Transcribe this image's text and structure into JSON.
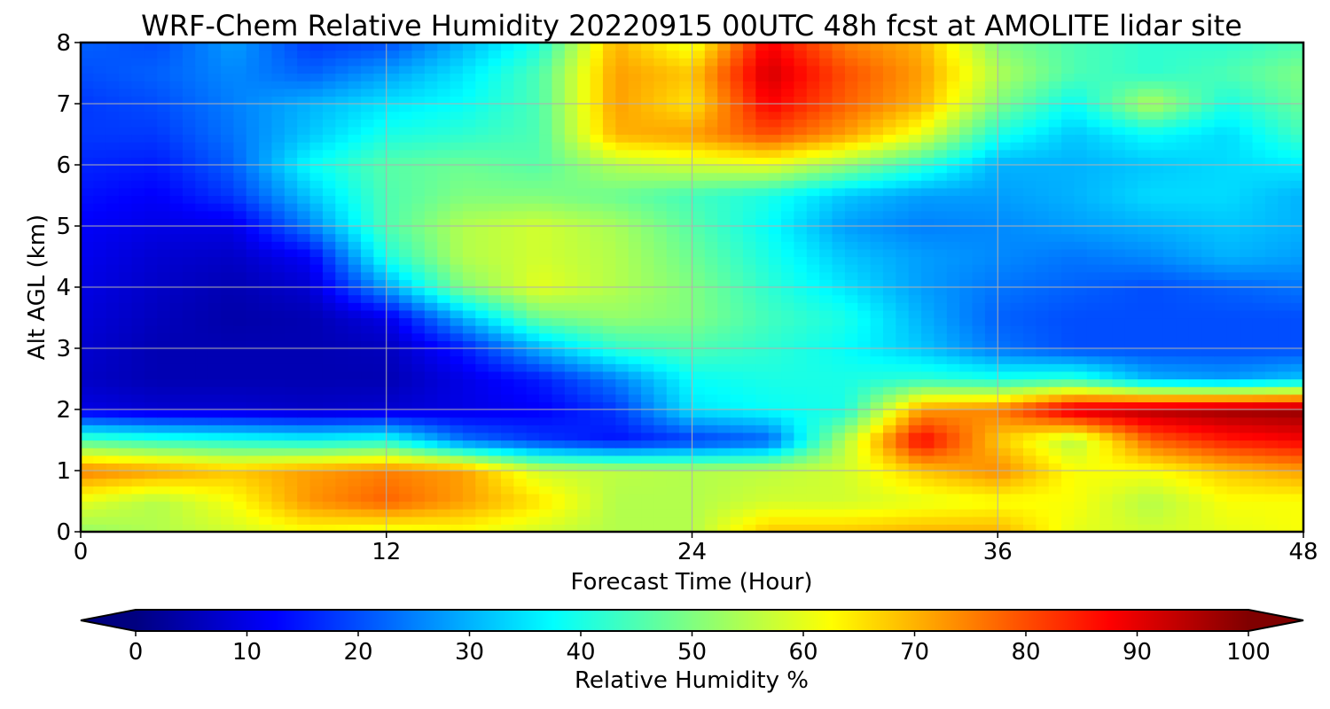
{
  "chart_data": {
    "type": "heatmap",
    "title": "WRF-Chem Relative Humidity 20220915 00UTC 48h fcst at AMOLITE lidar site",
    "xlabel": "Forecast Time (Hour)",
    "ylabel": "Alt AGL (km)",
    "xlim": [
      0,
      48
    ],
    "ylim": [
      0,
      8
    ],
    "x_ticks": [
      "0",
      "12",
      "24",
      "36",
      "48"
    ],
    "y_ticks": [
      "0",
      "1",
      "2",
      "3",
      "4",
      "5",
      "6",
      "7",
      "8"
    ],
    "grid": true,
    "colorbar": {
      "label": "Relative Humidity %",
      "range": [
        0,
        100
      ],
      "ticks": [
        "0",
        "10",
        "20",
        "30",
        "40",
        "50",
        "60",
        "70",
        "80",
        "90",
        "100"
      ],
      "colormap": "jet",
      "extend": "both"
    },
    "x": [
      0,
      3,
      6,
      9,
      12,
      15,
      18,
      21,
      24,
      27,
      30,
      33,
      36,
      39,
      42,
      45,
      48
    ],
    "y": [
      0,
      0.5,
      1,
      1.5,
      2,
      2.5,
      3,
      3.5,
      4,
      4.5,
      5,
      5.5,
      6,
      6.5,
      7,
      7.5,
      8
    ],
    "z": [
      [
        52,
        55,
        58,
        62,
        60,
        62,
        58,
        55,
        55,
        68,
        68,
        70,
        70,
        60,
        58,
        60,
        62
      ],
      [
        60,
        55,
        62,
        73,
        78,
        72,
        65,
        55,
        55,
        58,
        58,
        60,
        62,
        62,
        55,
        62,
        62
      ],
      [
        75,
        72,
        68,
        72,
        75,
        72,
        58,
        56,
        55,
        56,
        58,
        68,
        74,
        62,
        62,
        68,
        72
      ],
      [
        45,
        42,
        40,
        38,
        40,
        24,
        18,
        14,
        18,
        22,
        55,
        88,
        68,
        55,
        78,
        85,
        88
      ],
      [
        10,
        8,
        8,
        7,
        8,
        10,
        12,
        18,
        35,
        38,
        40,
        72,
        75,
        92,
        95,
        97,
        98
      ],
      [
        7,
        5,
        5,
        5,
        5,
        10,
        15,
        25,
        38,
        40,
        40,
        42,
        40,
        42,
        30,
        28,
        32
      ],
      [
        8,
        5,
        5,
        5,
        6,
        15,
        30,
        42,
        45,
        42,
        38,
        32,
        24,
        20,
        20,
        20,
        20
      ],
      [
        9,
        6,
        4,
        5,
        10,
        30,
        48,
        52,
        50,
        44,
        40,
        30,
        22,
        20,
        20,
        20,
        20
      ],
      [
        10,
        7,
        5,
        8,
        28,
        50,
        60,
        55,
        50,
        42,
        35,
        28,
        24,
        22,
        20,
        22,
        24
      ],
      [
        11,
        8,
        7,
        12,
        40,
        55,
        58,
        55,
        48,
        40,
        32,
        28,
        26,
        24,
        26,
        30,
        28
      ],
      [
        12,
        10,
        10,
        25,
        45,
        55,
        58,
        54,
        46,
        38,
        28,
        25,
        26,
        28,
        30,
        32,
        30
      ],
      [
        14,
        12,
        18,
        32,
        45,
        50,
        50,
        48,
        44,
        40,
        32,
        28,
        28,
        30,
        34,
        34,
        30
      ],
      [
        16,
        15,
        22,
        38,
        46,
        48,
        46,
        55,
        58,
        60,
        52,
        42,
        30,
        30,
        32,
        34,
        36
      ],
      [
        18,
        18,
        24,
        32,
        40,
        42,
        45,
        70,
        72,
        80,
        72,
        60,
        40,
        32,
        38,
        34,
        44
      ],
      [
        18,
        20,
        25,
        30,
        35,
        38,
        45,
        72,
        65,
        88,
        78,
        70,
        50,
        38,
        55,
        40,
        48
      ],
      [
        20,
        22,
        26,
        22,
        28,
        35,
        45,
        72,
        68,
        92,
        80,
        72,
        55,
        45,
        42,
        45,
        50
      ],
      [
        22,
        20,
        28,
        18,
        20,
        30,
        40,
        70,
        60,
        88,
        75,
        70,
        50,
        45,
        42,
        42,
        45
      ]
    ]
  }
}
